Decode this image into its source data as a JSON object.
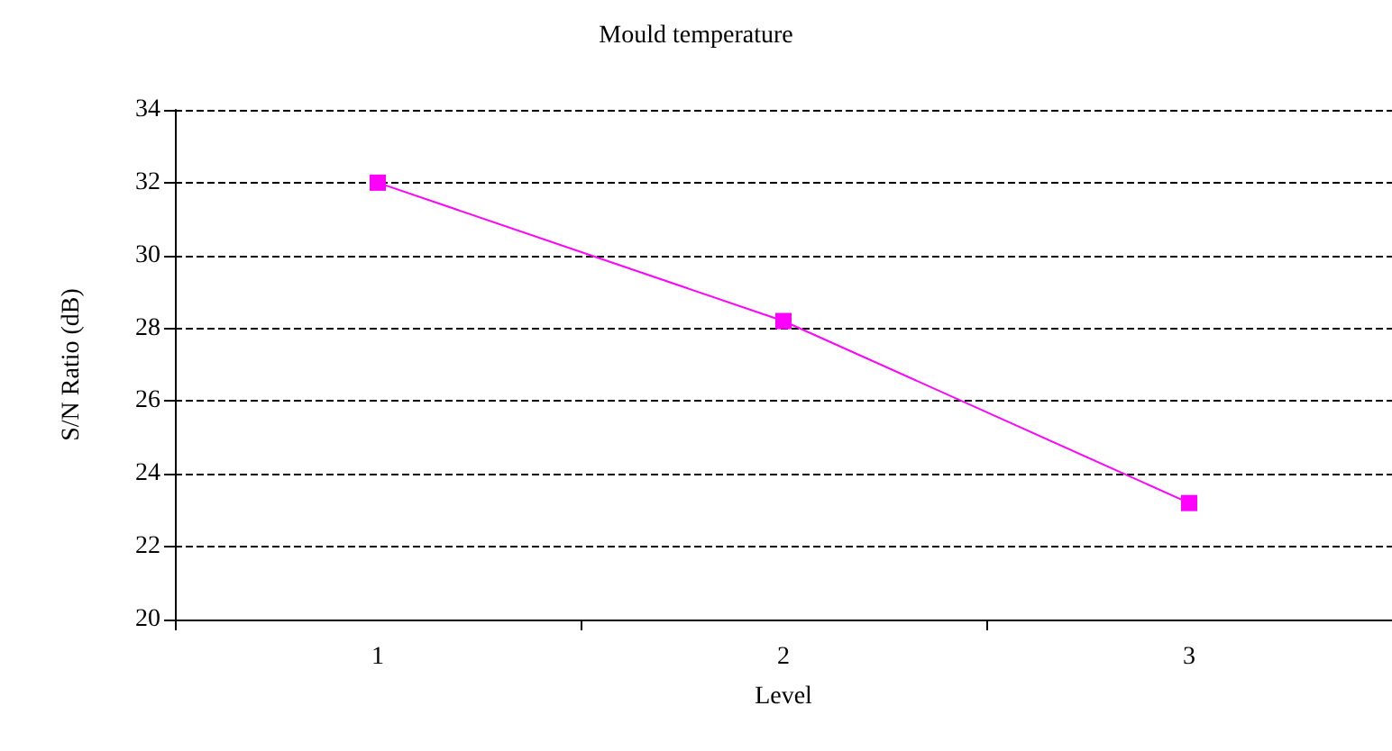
{
  "chart_data": {
    "type": "line",
    "title": "Mould temperature",
    "xlabel": "Level",
    "ylabel": "S/N Ratio (dB)",
    "categories": [
      "1",
      "2",
      "3"
    ],
    "series": [
      {
        "color": "#ff00ff",
        "values": [
          32,
          28.2,
          23.2
        ]
      }
    ],
    "ylim": [
      20,
      34
    ],
    "yticks": [
      20,
      22,
      24,
      26,
      28,
      30,
      32,
      34
    ],
    "grid": "y",
    "legend": false,
    "marker": "square",
    "line_style": "solid"
  }
}
